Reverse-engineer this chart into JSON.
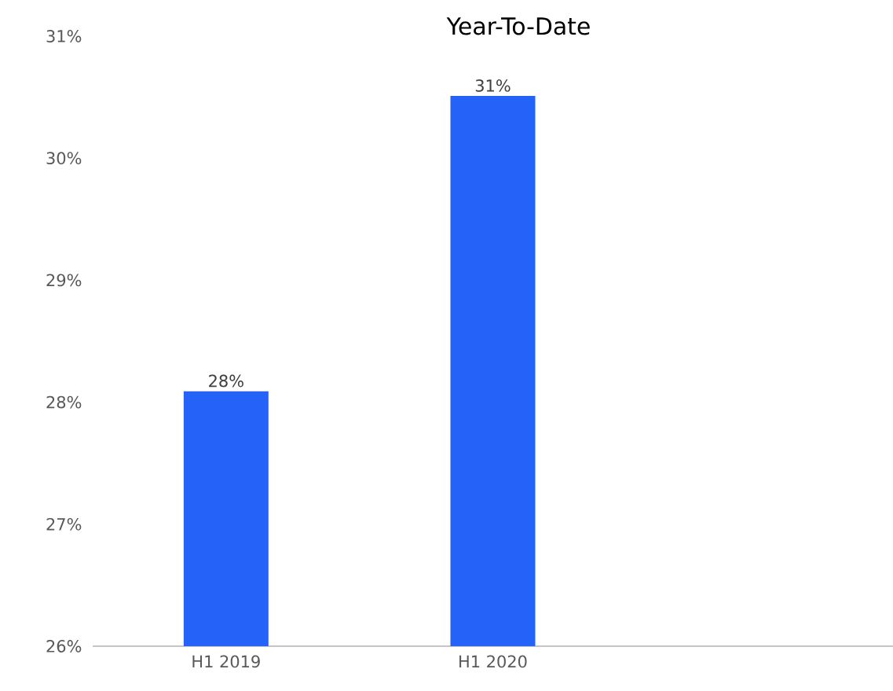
{
  "chart_data": {
    "type": "bar",
    "title": "Year-To-Date",
    "categories": [
      "H1 2019",
      "H1 2020",
      null
    ],
    "values": [
      28.09,
      30.51,
      null
    ],
    "value_labels": [
      "28%",
      "31%",
      null
    ],
    "color": "#2462f8",
    "ylim": [
      26,
      31
    ],
    "yticks": [
      {
        "value": 26,
        "label": "26%"
      },
      {
        "value": 27,
        "label": "27%"
      },
      {
        "value": 28,
        "label": "28%"
      },
      {
        "value": 29,
        "label": "29%"
      },
      {
        "value": 30,
        "label": "30%"
      },
      {
        "value": 31,
        "label": "31%"
      }
    ],
    "orientation": "vertical"
  }
}
